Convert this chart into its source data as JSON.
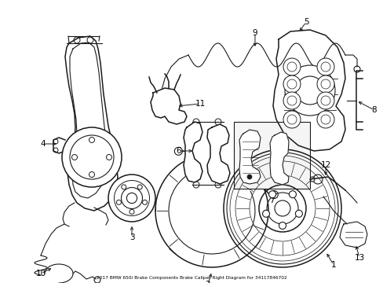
{
  "title": "2017 BMW 650i Brake Components Brake Caliper Right Diagram for 34117846702",
  "bg_color": "#ffffff",
  "line_color": "#1a1a1a",
  "label_color": "#000000",
  "figsize": [
    4.89,
    3.6
  ],
  "dpi": 100
}
